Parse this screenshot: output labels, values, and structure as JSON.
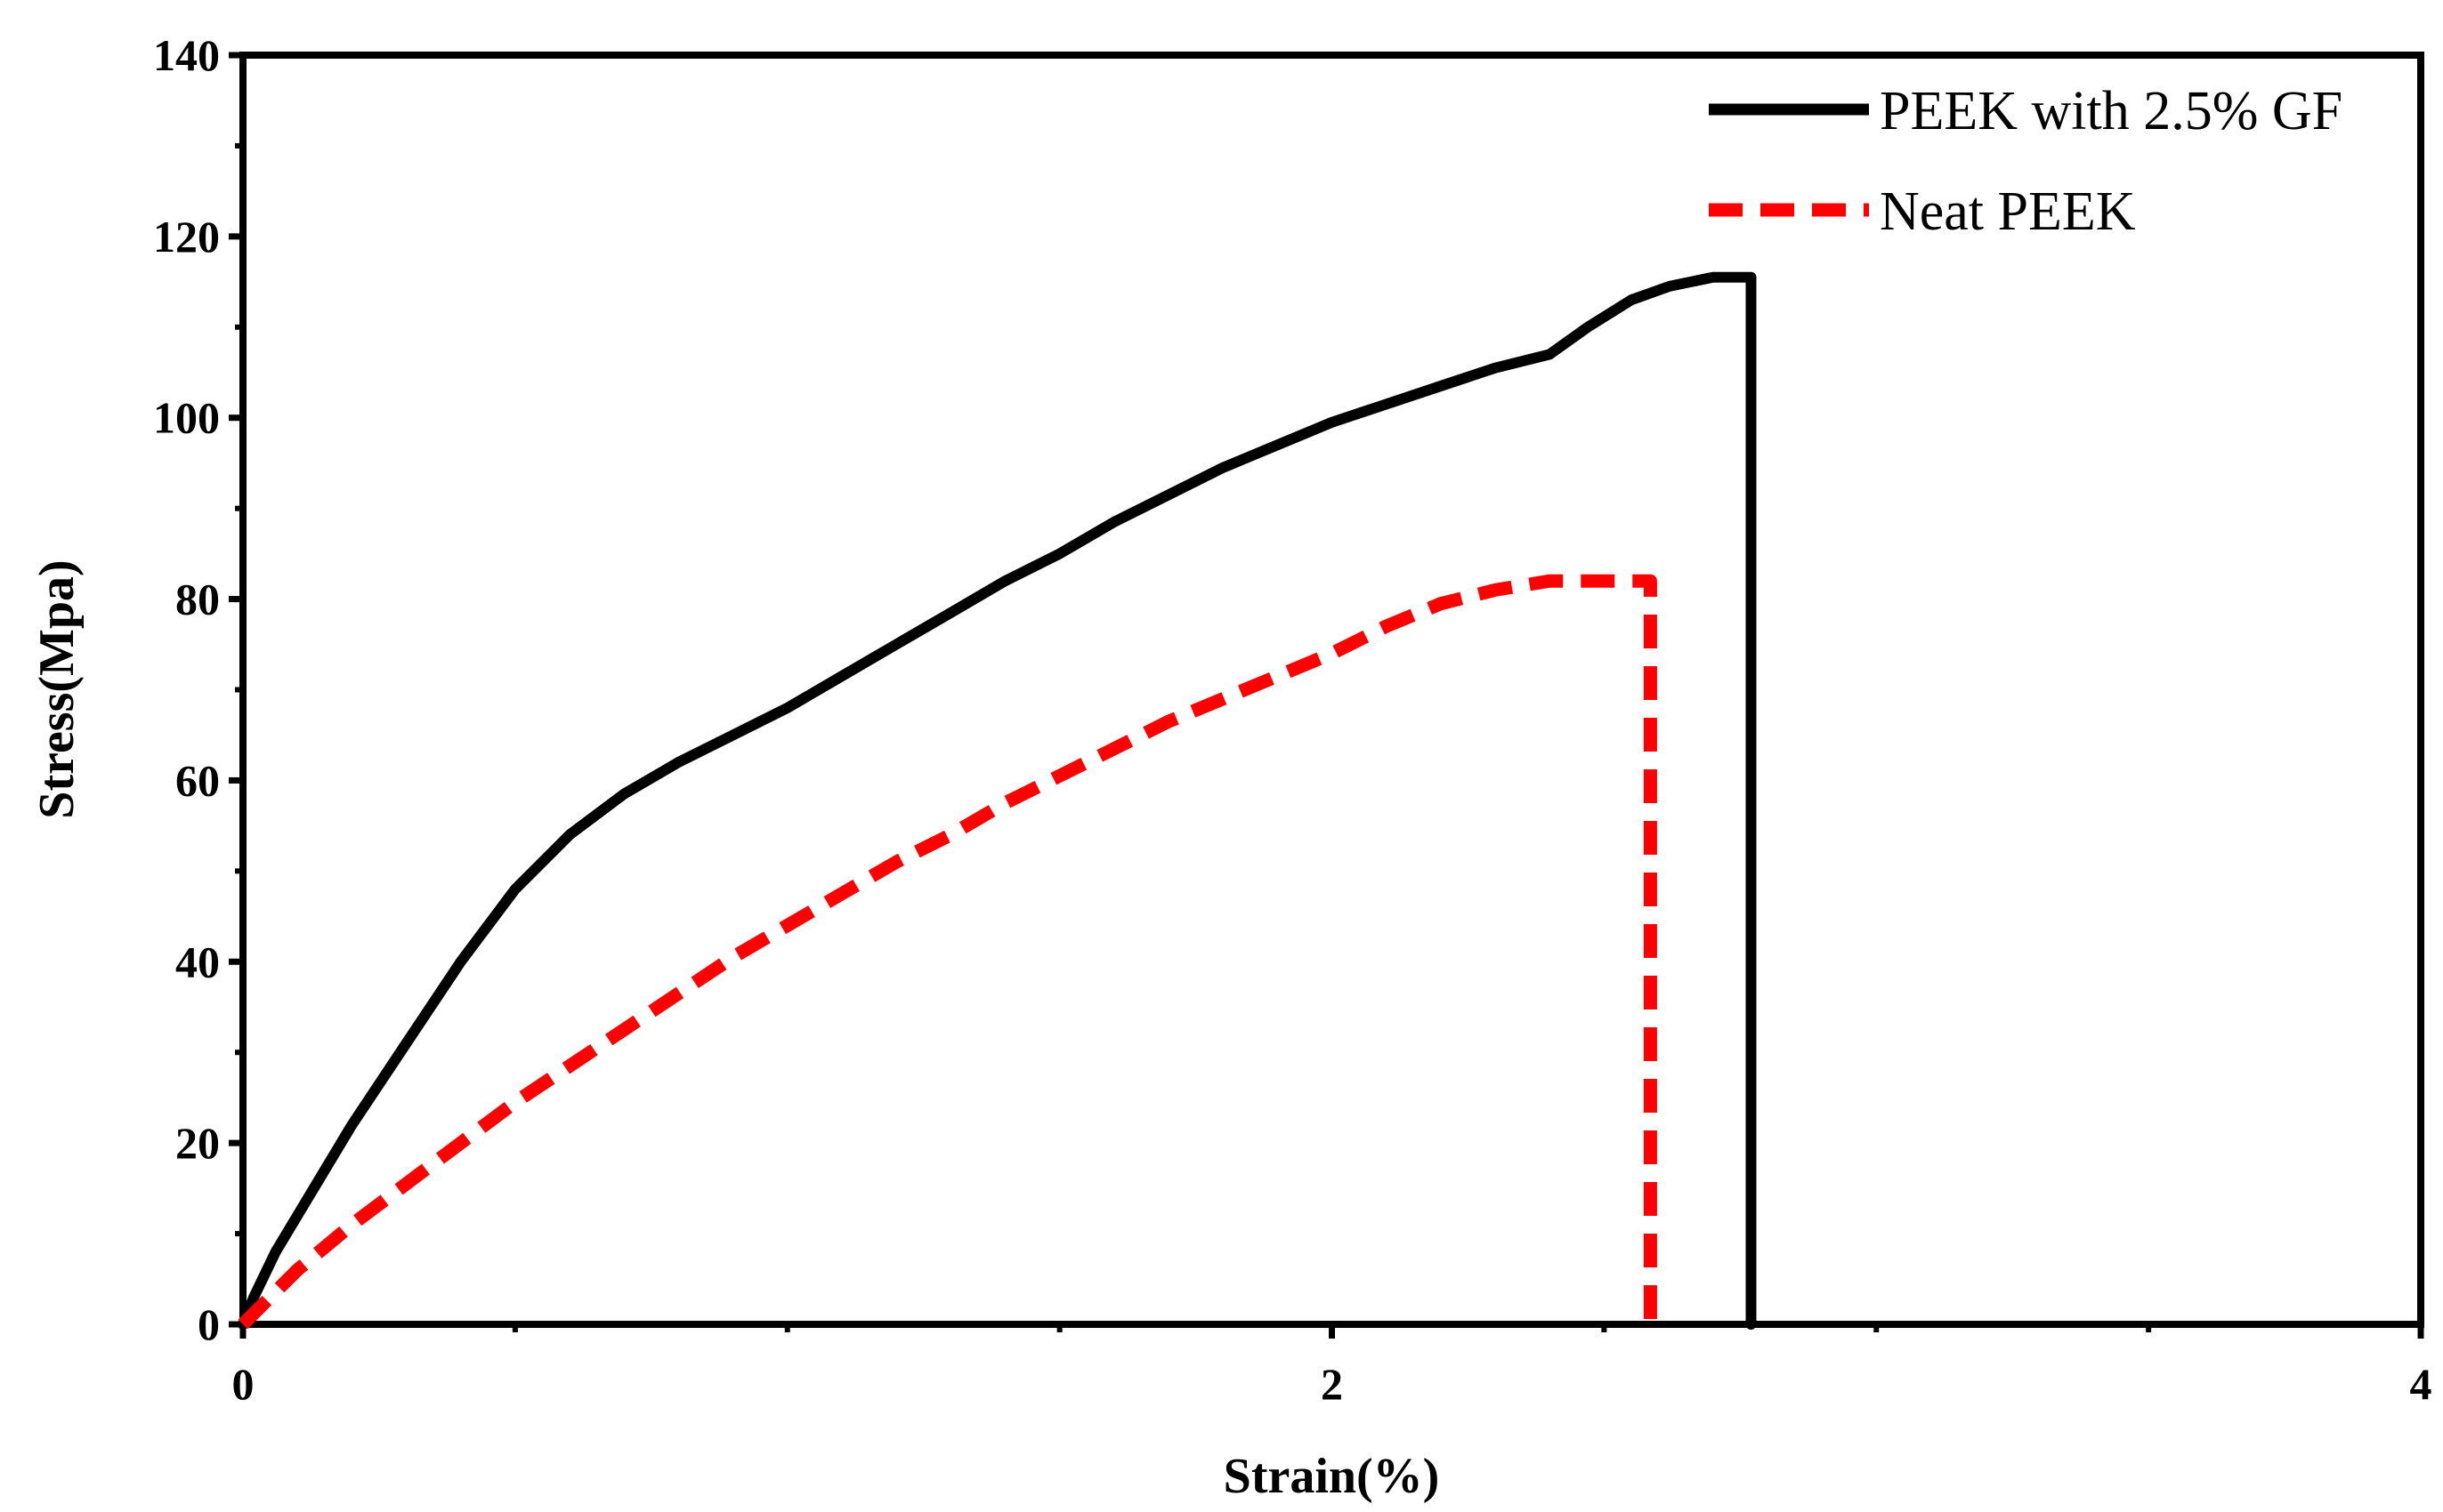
{
  "chart_data": {
    "type": "line",
    "title": "",
    "xlabel": "Strain(%)",
    "ylabel": "Stress(Mpa)",
    "xlim": [
      0,
      4
    ],
    "ylim": [
      0,
      140
    ],
    "x_ticks": [
      0,
      2,
      4
    ],
    "x_minor_step": 0.5,
    "y_ticks": [
      0,
      20,
      40,
      60,
      80,
      100,
      120,
      140
    ],
    "y_minor_step": 10,
    "grid": false,
    "legend_position": "top-right",
    "series": [
      {
        "name": "PEEK with 2.5% GF",
        "color": "#000000",
        "style": "solid",
        "x": [
          0,
          0.02,
          0.06,
          0.1,
          0.2,
          0.3,
          0.4,
          0.5,
          0.6,
          0.7,
          0.8,
          0.9,
          1.0,
          1.1,
          1.2,
          1.3,
          1.4,
          1.5,
          1.6,
          1.7,
          1.8,
          1.9,
          2.0,
          2.1,
          2.2,
          2.3,
          2.4,
          2.47,
          2.55,
          2.62,
          2.7,
          2.77,
          2.77
        ],
        "y": [
          0,
          3,
          8,
          12,
          22,
          31,
          40,
          48,
          54,
          58.5,
          62,
          65,
          68,
          71.5,
          75,
          78.5,
          82,
          85,
          88.5,
          91.5,
          94.5,
          97,
          99.5,
          101.5,
          103.5,
          105.5,
          107,
          110,
          113,
          114.5,
          115.5,
          115.5,
          0
        ]
      },
      {
        "name": "Neat PEEK",
        "color": "#ff0000",
        "style": "dashed",
        "x": [
          0,
          0.05,
          0.1,
          0.2,
          0.3,
          0.4,
          0.5,
          0.6,
          0.7,
          0.8,
          0.9,
          1.0,
          1.1,
          1.2,
          1.3,
          1.4,
          1.5,
          1.6,
          1.7,
          1.8,
          1.9,
          2.0,
          2.1,
          2.2,
          2.3,
          2.4,
          2.5,
          2.58,
          2.585,
          2.585
        ],
        "y": [
          0,
          3,
          6,
          11,
          15.5,
          20,
          24.5,
          28.5,
          32.5,
          36.5,
          40.5,
          44,
          47.5,
          51,
          54,
          57.5,
          60.5,
          63.5,
          66.5,
          69,
          71.5,
          74,
          77,
          79.5,
          81,
          82,
          82,
          82,
          82,
          0
        ]
      }
    ]
  }
}
